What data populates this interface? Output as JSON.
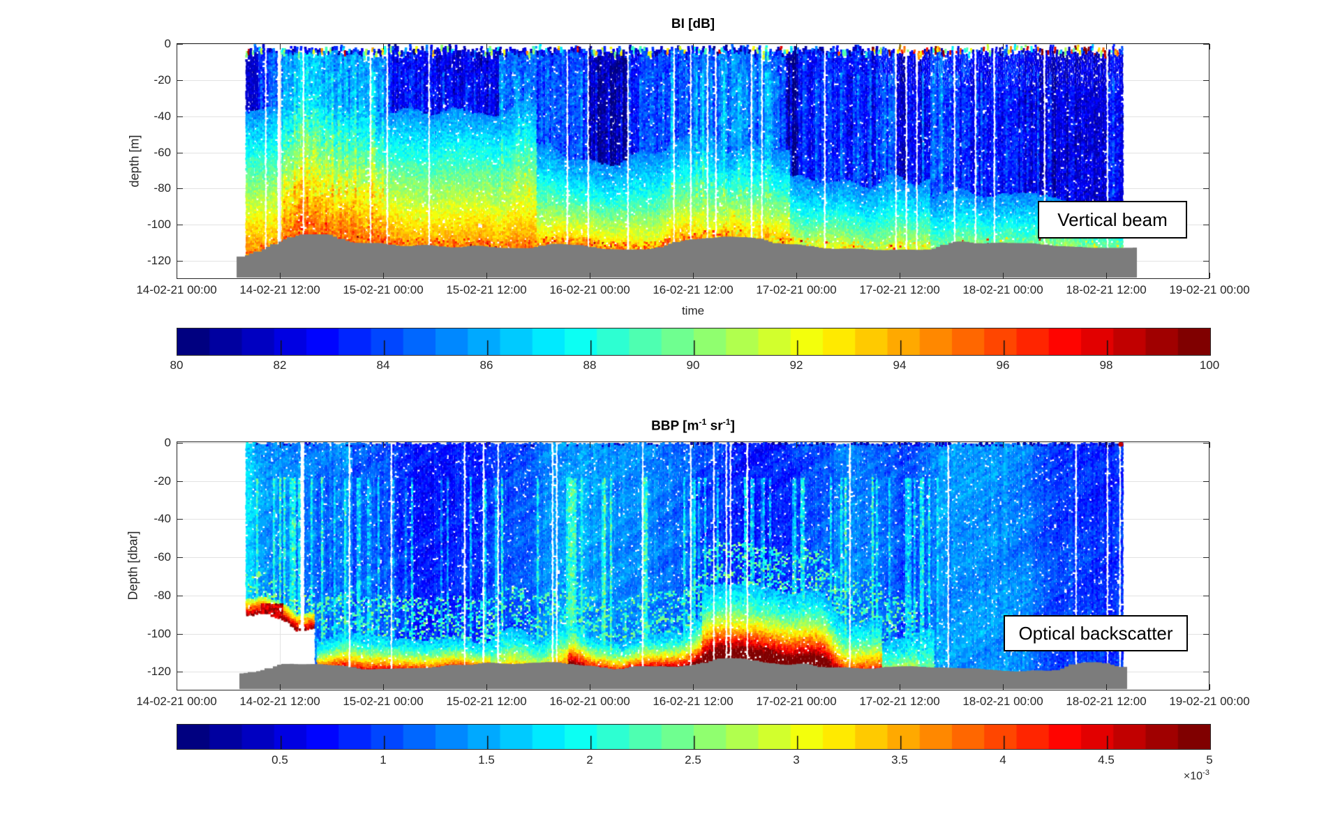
{
  "bi": {
    "title": "BI [dB]",
    "ylabel": "depth [m]",
    "xlabel": "time",
    "annotation": "Vertical beam",
    "yticks": [
      "0",
      "-20",
      "-40",
      "-60",
      "-80",
      "-100",
      "-120"
    ],
    "colorbar_ticks": [
      "80",
      "82",
      "84",
      "86",
      "88",
      "90",
      "92",
      "94",
      "96",
      "98",
      "100"
    ]
  },
  "bbp": {
    "title_pre": "BBP [m",
    "title_sup1": "-1",
    "title_mid": " sr",
    "title_sup2": "-1",
    "title_post": "]",
    "ylabel": "Depth [dbar]",
    "annotation": "Optical backscatter",
    "yticks": [
      "0",
      "-20",
      "-40",
      "-60",
      "-80",
      "-100",
      "-120"
    ],
    "colorbar_ticks": [
      "0.5",
      "1",
      "1.5",
      "2",
      "2.5",
      "3",
      "3.5",
      "4",
      "4.5",
      "5"
    ],
    "colorbar_exp_base": "×10",
    "colorbar_exp_sup": "-3"
  },
  "time_axis": {
    "ticks": [
      "14-02-21 00:00",
      "14-02-21 12:00",
      "15-02-21 00:00",
      "15-02-21 12:00",
      "16-02-21 00:00",
      "16-02-21 12:00",
      "17-02-21 00:00",
      "17-02-21 12:00",
      "18-02-21 00:00",
      "18-02-21 12:00",
      "19-02-21 00:00"
    ]
  },
  "colors": {
    "background": "#ffffff",
    "seabed_gray": "#7c7c7c",
    "axis_text": "#262626",
    "grid": "#e2e2e2",
    "annotation_border": "#000000",
    "colormap": "jet"
  },
  "chart_data": [
    {
      "type": "heatmap",
      "panel": "top",
      "title": "BI [dB]",
      "xlabel": "time",
      "ylabel": "depth [m]",
      "x_ticks": [
        "14-02-21 00:00",
        "14-02-21 12:00",
        "15-02-21 00:00",
        "15-02-21 12:00",
        "16-02-21 00:00",
        "16-02-21 12:00",
        "17-02-21 00:00",
        "17-02-21 12:00",
        "18-02-21 00:00",
        "18-02-21 12:00",
        "19-02-21 00:00"
      ],
      "y_ticks": [
        0,
        -20,
        -40,
        -60,
        -80,
        -100,
        -120
      ],
      "ylim": [
        -130,
        0
      ],
      "colormap": "jet",
      "colorbar": {
        "min": 80,
        "max": 100,
        "ticks": [
          80,
          82,
          84,
          86,
          88,
          90,
          92,
          94,
          96,
          98,
          100
        ],
        "units": "dB"
      },
      "annotation": "Vertical beam",
      "data_coverage": {
        "start": "14-02-21 ~08:00",
        "end": "18-02-21 ~14:00"
      },
      "seabed_profile": {
        "time": [
          "14-02-21 12:00",
          "15-02-21 00:00",
          "15-02-21 12:00",
          "16-02-21 00:00",
          "16-02-21 12:00",
          "17-02-21 00:00",
          "17-02-21 12:00",
          "18-02-21 00:00",
          "18-02-21 12:00"
        ],
        "depth_m": [
          -112,
          -108,
          -111,
          -110,
          -113,
          -108,
          -112,
          -116,
          -114
        ]
      },
      "pattern": "Blue upper water column (80-86 dB) with dark-blue patches; values increase toward the seabed reaching a yellow-orange-red bottom layer (90-98 dB), strongest before 17-02 12:00; scattered orange/red near-surface spikes, denser after 17-02; gray seabed mask at about -108 to -118 m."
    },
    {
      "type": "heatmap",
      "panel": "bottom",
      "title": "BBP [m^-1 sr^-1]",
      "xlabel": "",
      "ylabel": "Depth [dbar]",
      "x_ticks": [
        "14-02-21 00:00",
        "14-02-21 12:00",
        "15-02-21 00:00",
        "15-02-21 12:00",
        "16-02-21 00:00",
        "16-02-21 12:00",
        "17-02-21 00:00",
        "17-02-21 12:00",
        "18-02-21 00:00",
        "18-02-21 12:00",
        "19-02-21 00:00"
      ],
      "y_ticks": [
        0,
        -20,
        -40,
        -60,
        -80,
        -100,
        -120
      ],
      "ylim": [
        -130,
        0
      ],
      "colormap": "jet",
      "colorbar": {
        "min": 0,
        "max": 5,
        "ticks": [
          0.5,
          1,
          1.5,
          2,
          2.5,
          3,
          3.5,
          4,
          4.5,
          5
        ],
        "scale": "1e-3",
        "units": "m^-1 sr^-1"
      },
      "annotation": "Optical backscatter",
      "data_coverage": {
        "start": "14-02-21 ~08:00",
        "end": "18-02-21 ~14:00"
      },
      "seabed_profile": {
        "time": [
          "14-02-21 12:00",
          "15-02-21 00:00",
          "15-02-21 12:00",
          "16-02-21 00:00",
          "16-02-21 12:00",
          "17-02-21 00:00",
          "17-02-21 12:00",
          "18-02-21 00:00",
          "18-02-21 12:00"
        ],
        "depth_dbar": [
          -117,
          -112,
          -116,
          -115,
          -117,
          -111,
          -116,
          -120,
          -119
        ]
      },
      "pattern": "Mostly blue water column (~1-1.5e-3) with cyan streaks; turbid near-bottom layer (2.5-5e-3, orange to dark red) from 14-02 to 17-02 12:00 with dark-red maxima near the seabed around 15-02 and a tall mound near 17-02 00:00; earliest profiles (before ~14-02 10:00) stop near -90 dbar leaving a white gap above the seabed; after 17-02 12:00 uniformly blue to the bottom; one red dot at the surface at the final profile."
    }
  ]
}
